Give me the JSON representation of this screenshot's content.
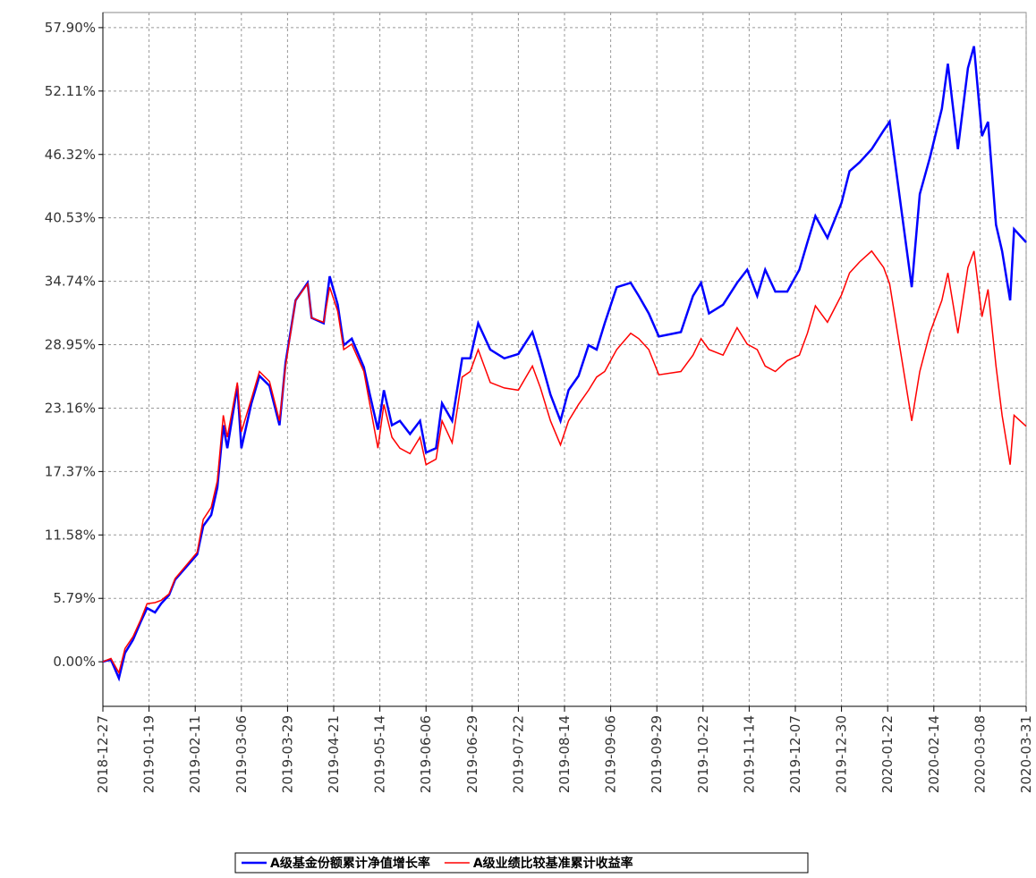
{
  "chart_data": {
    "type": "line",
    "x": [
      "2018-12-27",
      "2018-12-31",
      "2019-01-04",
      "2019-01-07",
      "2019-01-11",
      "2019-01-15",
      "2019-01-18",
      "2019-01-22",
      "2019-01-25",
      "2019-01-29",
      "2019-02-01",
      "2019-02-12",
      "2019-02-15",
      "2019-02-19",
      "2019-02-22",
      "2019-02-25",
      "2019-02-27",
      "2019-03-04",
      "2019-03-06",
      "2019-03-11",
      "2019-03-15",
      "2019-03-20",
      "2019-03-25",
      "2019-03-28",
      "2019-04-02",
      "2019-04-08",
      "2019-04-10",
      "2019-04-16",
      "2019-04-19",
      "2019-04-23",
      "2019-04-26",
      "2019-04-30",
      "2019-05-06",
      "2019-05-09",
      "2019-05-13",
      "2019-05-16",
      "2019-05-20",
      "2019-05-24",
      "2019-05-29",
      "2019-06-03",
      "2019-06-06",
      "2019-06-11",
      "2019-06-14",
      "2019-06-19",
      "2019-06-24",
      "2019-06-28",
      "2019-07-02",
      "2019-07-08",
      "2019-07-15",
      "2019-07-22",
      "2019-07-29",
      "2019-08-02",
      "2019-08-07",
      "2019-08-12",
      "2019-08-16",
      "2019-08-21",
      "2019-08-26",
      "2019-08-30",
      "2019-09-03",
      "2019-09-09",
      "2019-09-16",
      "2019-09-20",
      "2019-09-25",
      "2019-09-30",
      "2019-10-11",
      "2019-10-17",
      "2019-10-21",
      "2019-10-25",
      "2019-11-01",
      "2019-11-08",
      "2019-11-13",
      "2019-11-18",
      "2019-11-22",
      "2019-11-27",
      "2019-12-03",
      "2019-12-09",
      "2019-12-13",
      "2019-12-17",
      "2019-12-23",
      "2019-12-30",
      "2020-01-03",
      "2020-01-08",
      "2020-01-14",
      "2020-01-20",
      "2020-01-23",
      "2020-02-03",
      "2020-02-07",
      "2020-02-12",
      "2020-02-18",
      "2020-02-21",
      "2020-02-26",
      "2020-03-02",
      "2020-03-05",
      "2020-03-09",
      "2020-03-12",
      "2020-03-16",
      "2020-03-19",
      "2020-03-23",
      "2020-03-25",
      "2020-03-31"
    ],
    "series": [
      {
        "name": "A级基金份额累计净值增长率",
        "color": "#0000ff",
        "values": [
          0,
          0.2,
          -1.5,
          0.8,
          2.0,
          3.7,
          4.9,
          4.5,
          5.3,
          6.1,
          7.5,
          9.8,
          12.4,
          13.4,
          15.9,
          21.6,
          19.5,
          25.2,
          19.5,
          23.6,
          26.1,
          25.2,
          21.6,
          27.3,
          33.0,
          34.6,
          31.4,
          30.9,
          35.2,
          32.6,
          28.9,
          29.5,
          26.9,
          24.4,
          21.2,
          24.8,
          21.6,
          22.0,
          20.8,
          22.0,
          19.1,
          19.5,
          23.6,
          22.0,
          27.7,
          27.7,
          30.9,
          28.5,
          27.7,
          28.1,
          30.1,
          27.7,
          24.4,
          22.0,
          24.8,
          26.1,
          28.9,
          28.5,
          30.9,
          34.2,
          34.6,
          33.4,
          31.8,
          29.7,
          30.1,
          33.4,
          34.6,
          31.8,
          32.6,
          34.6,
          35.8,
          33.4,
          35.8,
          33.8,
          33.8,
          35.8,
          38.3,
          40.7,
          38.7,
          41.9,
          44.8,
          45.6,
          46.8,
          48.5,
          49.3,
          34.2,
          42.7,
          46.0,
          50.5,
          54.6,
          46.8,
          54.2,
          56.2,
          48.0,
          49.3,
          39.9,
          37.5,
          33.0,
          39.5,
          38.3
        ]
      },
      {
        "name": "A级业绩比较基准累计收益率",
        "color": "#ff0000",
        "values": [
          0,
          0.3,
          -1.0,
          1.2,
          2.3,
          3.9,
          5.3,
          5.4,
          5.6,
          6.2,
          7.6,
          10.0,
          13.0,
          14.1,
          16.5,
          22.5,
          20.5,
          25.5,
          21.0,
          24.0,
          26.5,
          25.6,
          22.0,
          27.0,
          33.0,
          34.5,
          31.4,
          31.0,
          34.2,
          32.0,
          28.5,
          29.0,
          26.5,
          23.5,
          19.5,
          23.5,
          20.5,
          19.5,
          19.0,
          20.5,
          18.0,
          18.5,
          22.0,
          20.0,
          26.0,
          26.5,
          28.5,
          25.5,
          25.0,
          24.8,
          27.0,
          25.0,
          22.0,
          19.8,
          22.0,
          23.5,
          24.8,
          26.0,
          26.5,
          28.5,
          30.0,
          29.5,
          28.5,
          26.2,
          26.5,
          28.0,
          29.5,
          28.5,
          28.0,
          30.5,
          29.0,
          28.5,
          27.0,
          26.5,
          27.5,
          28.0,
          30.0,
          32.5,
          31.0,
          33.5,
          35.5,
          36.5,
          37.5,
          36.0,
          34.5,
          22.0,
          26.5,
          30.0,
          33.0,
          35.5,
          30.0,
          36.0,
          37.5,
          31.5,
          34.0,
          27.0,
          22.5,
          18.0,
          22.5,
          21.5
        ]
      }
    ],
    "xlim": [
      "2018-12-27",
      "2020-03-31"
    ],
    "xticks": [
      "2018-12-27",
      "2019-01-19",
      "2019-02-11",
      "2019-03-06",
      "2019-03-29",
      "2019-04-21",
      "2019-05-14",
      "2019-06-06",
      "2019-06-29",
      "2019-07-22",
      "2019-08-14",
      "2019-09-06",
      "2019-09-29",
      "2019-10-22",
      "2019-11-14",
      "2019-12-07",
      "2019-12-30",
      "2020-01-22",
      "2020-02-14",
      "2020-03-08",
      "2020-03-31"
    ],
    "ylim": [
      -4.07,
      59.28
    ],
    "yticks": [
      {
        "value": 0,
        "label": "0.00%"
      },
      {
        "value": 5.79,
        "label": "5.79%"
      },
      {
        "value": 11.58,
        "label": "11.58%"
      },
      {
        "value": 17.37,
        "label": "17.37%"
      },
      {
        "value": 23.16,
        "label": "23.16%"
      },
      {
        "value": 28.95,
        "label": "28.95%"
      },
      {
        "value": 34.74,
        "label": "34.74%"
      },
      {
        "value": 40.53,
        "label": "40.53%"
      },
      {
        "value": 46.32,
        "label": "46.32%"
      },
      {
        "value": 52.11,
        "label": "52.11%"
      },
      {
        "value": 57.9,
        "label": "57.90%"
      }
    ],
    "grid": true
  }
}
